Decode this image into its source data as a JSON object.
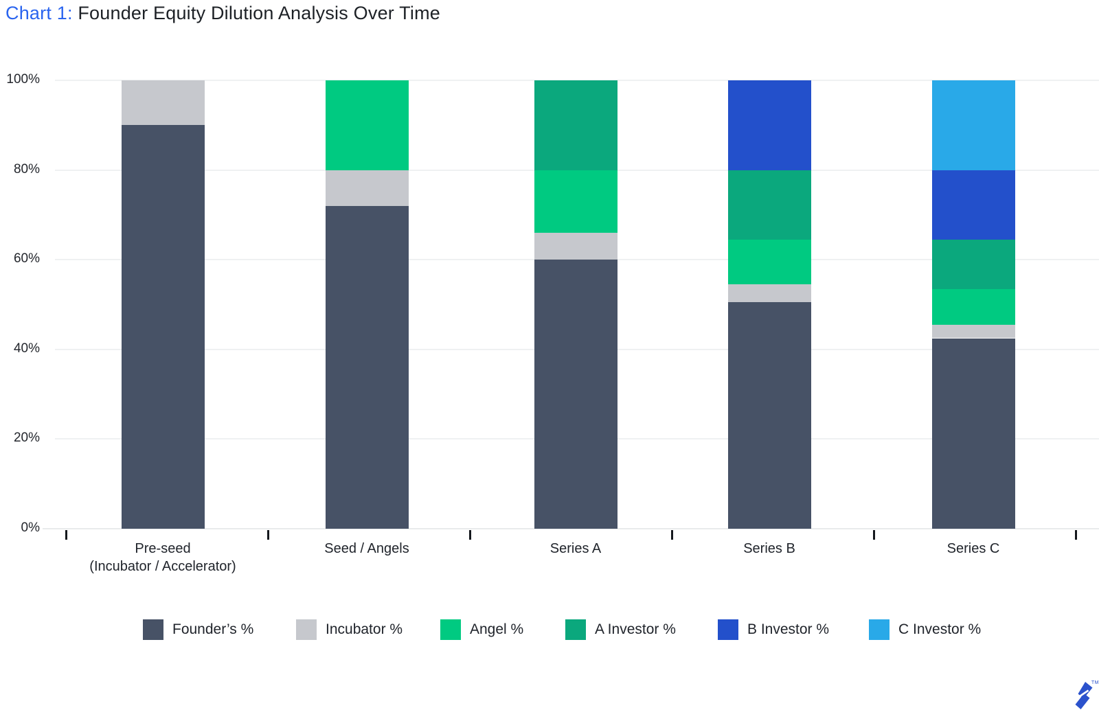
{
  "title": {
    "prefix": "Chart 1:",
    "main": " Founder Equity Dilution Analysis Over Time"
  },
  "chart_data": {
    "type": "bar",
    "stacked": true,
    "title": "Chart 1: Founder Equity Dilution Analysis Over Time",
    "categories": [
      [
        "Pre-seed",
        "(Incubator / Accelerator)"
      ],
      [
        "Seed / Angels"
      ],
      [
        "Series A"
      ],
      [
        "Series B"
      ],
      [
        "Series C"
      ]
    ],
    "series": [
      {
        "name": "Founder’s %",
        "color": "#475266",
        "values": [
          90,
          72,
          60,
          50.5,
          42.5
        ]
      },
      {
        "name": "Incubator %",
        "color": "#c6c8cd",
        "values": [
          10,
          8,
          6,
          4,
          3
        ]
      },
      {
        "name": "Angel %",
        "color": "#00ca81",
        "values": [
          0,
          20,
          14,
          10,
          8
        ]
      },
      {
        "name": "A Investor %",
        "color": "#0ba87d",
        "values": [
          0,
          0,
          20,
          15.5,
          11
        ]
      },
      {
        "name": "B Investor %",
        "color": "#2350cb",
        "values": [
          0,
          0,
          0,
          20,
          15.5
        ]
      },
      {
        "name": "C Investor %",
        "color": "#29a9e8",
        "values": [
          0,
          0,
          0,
          0,
          20
        ]
      }
    ],
    "xlabel": "",
    "ylabel": "",
    "ylim": [
      0,
      100
    ],
    "y_ticks": [
      "0%",
      "20%",
      "40%",
      "60%",
      "80%",
      "100%"
    ],
    "grid": true,
    "legend_position": "bottom"
  },
  "branding": {
    "trademark": "TM"
  }
}
